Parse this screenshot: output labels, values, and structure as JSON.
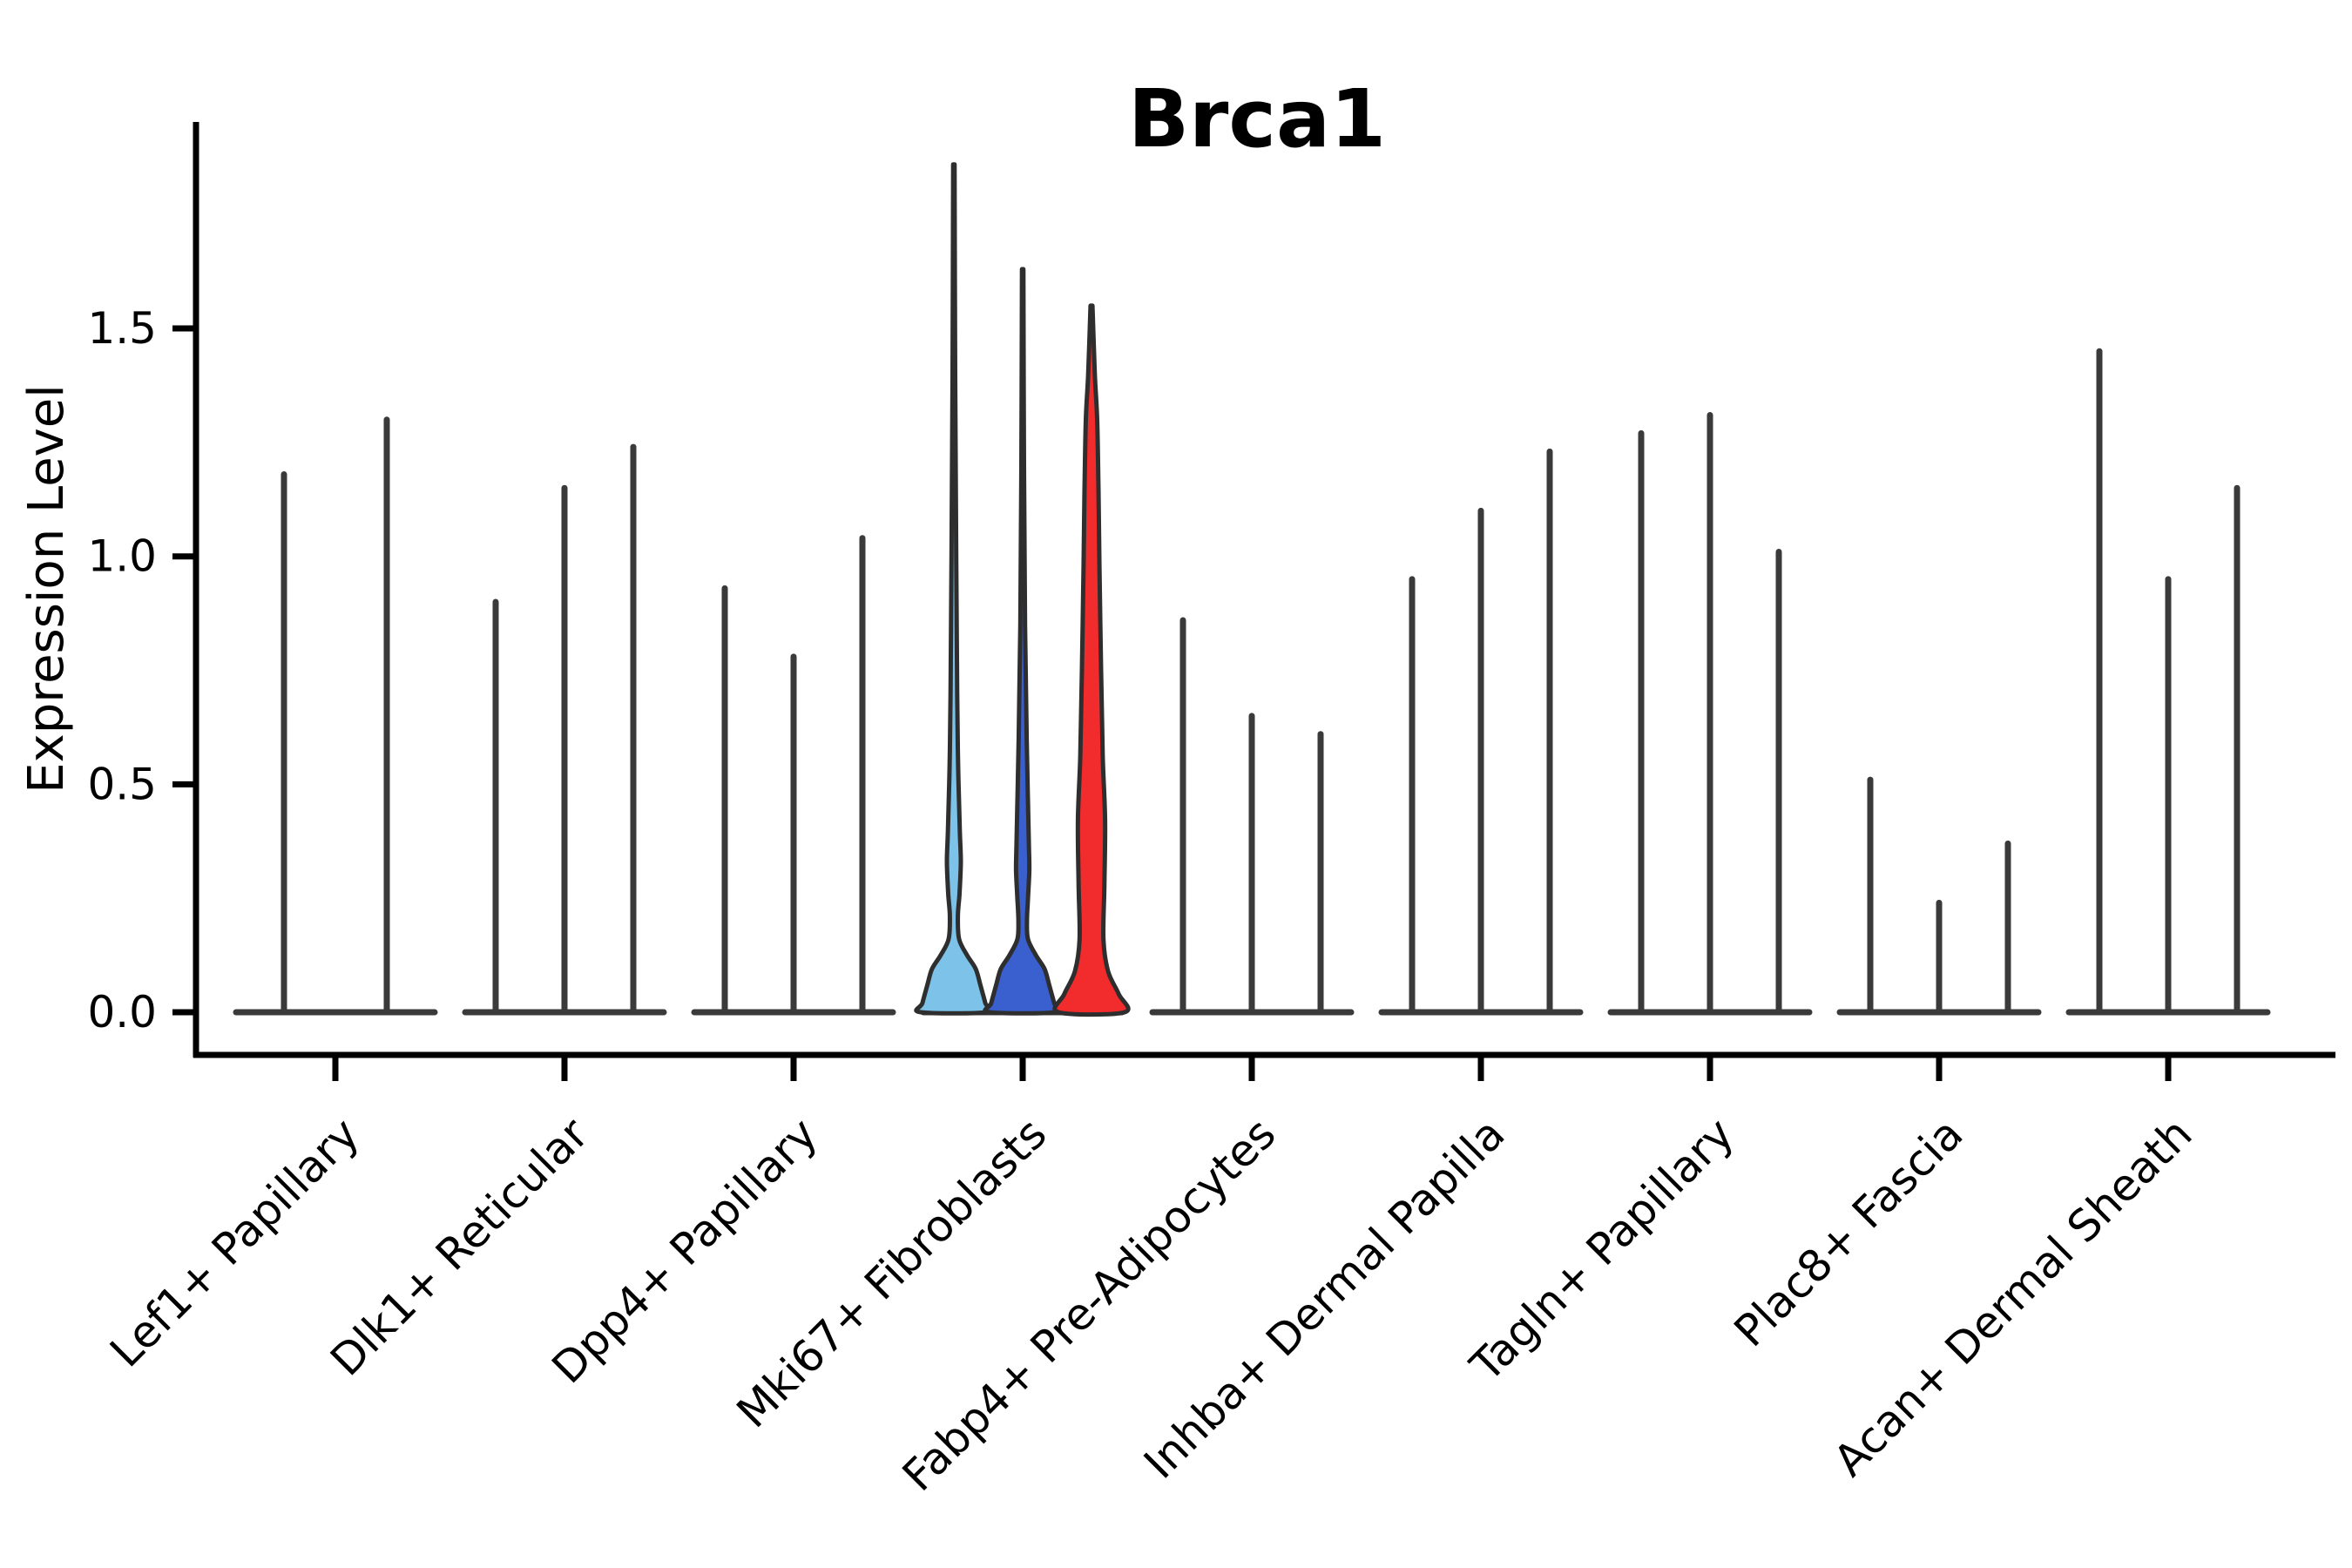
{
  "title": "Brca1",
  "chart_data": {
    "type": "violin",
    "title": "Brca1",
    "xlabel": "",
    "ylabel": "Expression Level",
    "ylim": [
      0,
      1.95
    ],
    "yticks": [
      {
        "value": 0.0,
        "label": "0.0"
      },
      {
        "value": 0.5,
        "label": "0.5"
      },
      {
        "value": 1.0,
        "label": "1.0"
      },
      {
        "value": 1.5,
        "label": "1.5"
      }
    ],
    "grid": false,
    "legend": "none",
    "categories": [
      "Lef1+ Papillary",
      "Dlk1+ Reticular",
      "Dpp4+ Papillary",
      "Mki67+ Fibroblasts",
      "Fabp4+ Pre-Adipocytes",
      "Inhba+ Dermal Papilla",
      "Tagln+ Papillary",
      "Plac8+ Fascia",
      "Acan+ Dermal Sheath"
    ],
    "colors": {
      "spike": "#3a3a3a",
      "baseline": "#3a3a3a",
      "violin_stroke": "#2e2e2e",
      "highlight_fills": [
        "#7dc2e8",
        "#3a5fce",
        "#f22c2c"
      ],
      "background": "#ffffff"
    },
    "groups": [
      {
        "category": "Lef1+ Papillary",
        "violins": [
          {
            "slot": 0,
            "max": 1.18,
            "style": "spike"
          },
          {
            "slot": 1,
            "max": 1.3,
            "style": "spike"
          }
        ]
      },
      {
        "category": "Dlk1+ Reticular",
        "violins": [
          {
            "slot": 0,
            "max": 0.9,
            "style": "spike"
          },
          {
            "slot": 1,
            "max": 1.15,
            "style": "spike"
          },
          {
            "slot": 2,
            "max": 1.24,
            "style": "spike"
          }
        ]
      },
      {
        "category": "Dpp4+ Papillary",
        "violins": [
          {
            "slot": 0,
            "max": 0.93,
            "style": "spike"
          },
          {
            "slot": 1,
            "max": 0.78,
            "style": "spike"
          },
          {
            "slot": 2,
            "max": 1.04,
            "style": "spike"
          }
        ]
      },
      {
        "category": "Mki67+ Fibroblasts",
        "violins": [
          {
            "slot": 0,
            "max": 1.86,
            "style": "violin",
            "fill": "#7dc2e8",
            "profile": [
              [
                1.86,
                0.02
              ],
              [
                1.4,
                0.04
              ],
              [
                1.0,
                0.07
              ],
              [
                0.7,
                0.1
              ],
              [
                0.54,
                0.13
              ],
              [
                0.4,
                0.18
              ],
              [
                0.33,
                0.21
              ],
              [
                0.26,
                0.17
              ],
              [
                0.21,
                0.12
              ],
              [
                0.16,
                0.16
              ],
              [
                0.125,
                0.4
              ],
              [
                0.095,
                0.66
              ],
              [
                0.06,
                0.8
              ],
              [
                0.02,
                0.95
              ],
              [
                0,
                1.0
              ]
            ]
          },
          {
            "slot": 1,
            "max": 1.63,
            "style": "violin",
            "fill": "#3a5fce",
            "profile": [
              [
                1.63,
                0.02
              ],
              [
                1.2,
                0.04
              ],
              [
                0.85,
                0.07
              ],
              [
                0.6,
                0.12
              ],
              [
                0.46,
                0.16
              ],
              [
                0.36,
                0.19
              ],
              [
                0.31,
                0.2
              ],
              [
                0.25,
                0.16
              ],
              [
                0.2,
                0.13
              ],
              [
                0.16,
                0.16
              ],
              [
                0.125,
                0.4
              ],
              [
                0.095,
                0.66
              ],
              [
                0.06,
                0.8
              ],
              [
                0.02,
                0.95
              ],
              [
                0,
                1.0
              ]
            ]
          },
          {
            "slot": 2,
            "max": 1.55,
            "style": "violin",
            "fill": "#f22c2c",
            "profile": [
              [
                1.55,
                0.03
              ],
              [
                1.4,
                0.1
              ],
              [
                1.3,
                0.17
              ],
              [
                1.15,
                0.21
              ],
              [
                0.98,
                0.24
              ],
              [
                0.75,
                0.29
              ],
              [
                0.56,
                0.34
              ],
              [
                0.42,
                0.41
              ],
              [
                0.28,
                0.39
              ],
              [
                0.16,
                0.36
              ],
              [
                0.09,
                0.5
              ],
              [
                0.04,
                0.82
              ],
              [
                0,
                1.0
              ]
            ]
          }
        ]
      },
      {
        "category": "Fabp4+ Pre-Adipocytes",
        "violins": [
          {
            "slot": 0,
            "max": 0.86,
            "style": "spike"
          },
          {
            "slot": 1,
            "max": 0.65,
            "style": "spike"
          },
          {
            "slot": 2,
            "max": 0.61,
            "style": "spike"
          }
        ]
      },
      {
        "category": "Inhba+ Dermal Papilla",
        "violins": [
          {
            "slot": 0,
            "max": 0.95,
            "style": "spike"
          },
          {
            "slot": 1,
            "max": 1.1,
            "style": "spike"
          },
          {
            "slot": 2,
            "max": 1.23,
            "style": "spike"
          }
        ]
      },
      {
        "category": "Tagln+ Papillary",
        "violins": [
          {
            "slot": 0,
            "max": 1.27,
            "style": "spike"
          },
          {
            "slot": 1,
            "max": 1.31,
            "style": "spike"
          },
          {
            "slot": 2,
            "max": 1.01,
            "style": "spike"
          }
        ]
      },
      {
        "category": "Plac8+ Fascia",
        "violins": [
          {
            "slot": 0,
            "max": 0.51,
            "style": "spike"
          },
          {
            "slot": 1,
            "max": 0.24,
            "style": "spike"
          },
          {
            "slot": 2,
            "max": 0.37,
            "style": "spike"
          }
        ]
      },
      {
        "category": "Acan+ Dermal Sheath",
        "violins": [
          {
            "slot": 0,
            "max": 1.45,
            "style": "spike"
          },
          {
            "slot": 1,
            "max": 0.95,
            "style": "spike"
          },
          {
            "slot": 2,
            "max": 1.15,
            "style": "spike"
          }
        ]
      }
    ]
  }
}
